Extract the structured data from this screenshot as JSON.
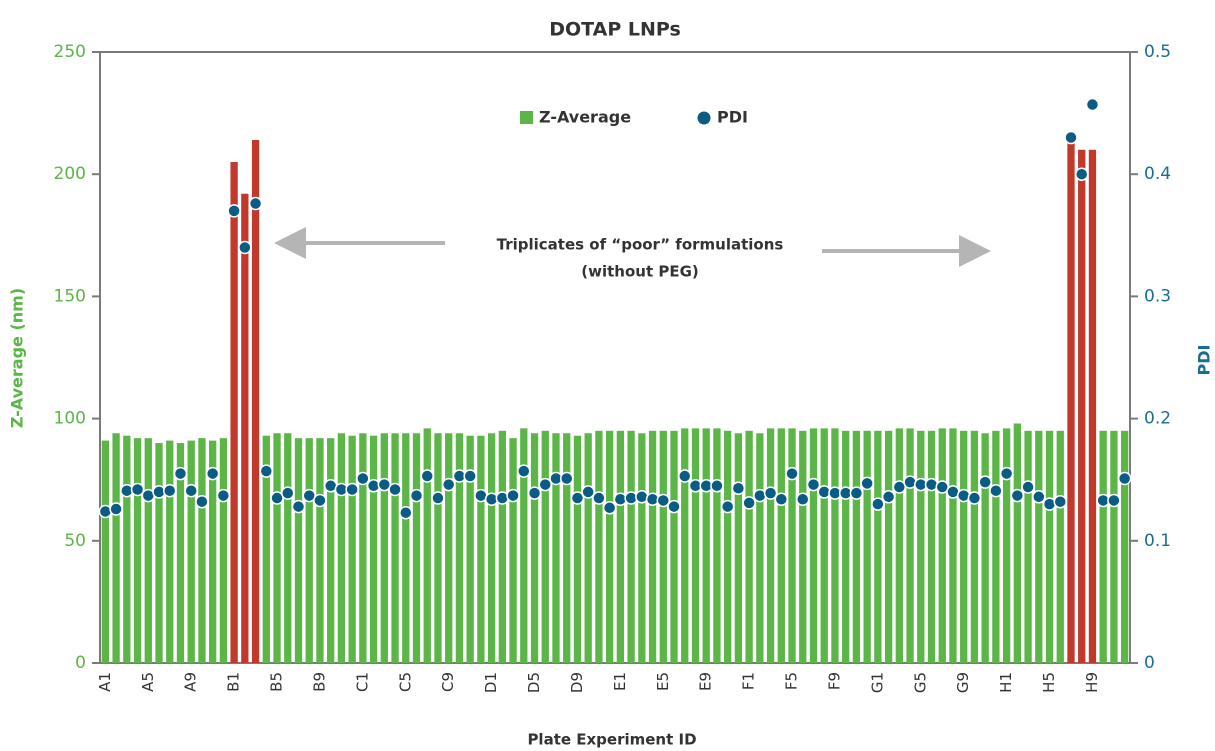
{
  "chart_data": {
    "type": "bar",
    "title": "DOTAP LNPs",
    "x_label": "Plate Experiment ID",
    "y_label": "Z-Average (nm)",
    "y2_label": "PDI",
    "annotation": [
      "Triplicates of “poor” formulations",
      "(without PEG)"
    ],
    "categories": [
      "A1",
      null,
      null,
      null,
      "A5",
      null,
      null,
      null,
      "A9",
      null,
      null,
      null,
      "B1",
      null,
      null,
      null,
      "B5",
      null,
      null,
      null,
      "B9",
      null,
      null,
      null,
      "C1",
      null,
      null,
      null,
      "C5",
      null,
      null,
      null,
      "C9",
      null,
      null,
      null,
      "D1",
      null,
      null,
      null,
      "D5",
      null,
      null,
      null,
      "D9",
      null,
      null,
      null,
      "E1",
      null,
      null,
      null,
      "E5",
      null,
      null,
      null,
      "E9",
      null,
      null,
      null,
      "F1",
      null,
      null,
      null,
      "F5",
      null,
      null,
      null,
      "F9",
      null,
      null,
      null,
      "G1",
      null,
      null,
      null,
      "G5",
      null,
      null,
      null,
      "G9",
      null,
      null,
      null,
      "H1",
      null,
      null,
      null,
      "H5",
      null,
      null,
      null,
      "H9",
      null,
      null,
      null
    ],
    "series": [
      {
        "name": "Z-Average",
        "type": "bar",
        "color": "#5bb547",
        "colors": [
          "#5bb547",
          "#5bb547",
          "#5bb547",
          "#5bb547",
          "#5bb547",
          "#5bb547",
          "#5bb547",
          "#5bb547",
          "#5bb547",
          "#5bb547",
          "#5bb547",
          "#5bb547",
          "#c0392b",
          "#c0392b",
          "#c0392b",
          "#5bb547",
          "#5bb547",
          "#5bb547",
          "#5bb547",
          "#5bb547",
          "#5bb547",
          "#5bb547",
          "#5bb547",
          "#5bb547",
          "#5bb547",
          "#5bb547",
          "#5bb547",
          "#5bb547",
          "#5bb547",
          "#5bb547",
          "#5bb547",
          "#5bb547",
          "#5bb547",
          "#5bb547",
          "#5bb547",
          "#5bb547",
          "#5bb547",
          "#5bb547",
          "#5bb547",
          "#5bb547",
          "#5bb547",
          "#5bb547",
          "#5bb547",
          "#5bb547",
          "#5bb547",
          "#5bb547",
          "#5bb547",
          "#5bb547",
          "#5bb547",
          "#5bb547",
          "#5bb547",
          "#5bb547",
          "#5bb547",
          "#5bb547",
          "#5bb547",
          "#5bb547",
          "#5bb547",
          "#5bb547",
          "#5bb547",
          "#5bb547",
          "#5bb547",
          "#5bb547",
          "#5bb547",
          "#5bb547",
          "#5bb547",
          "#5bb547",
          "#5bb547",
          "#5bb547",
          "#5bb547",
          "#5bb547",
          "#5bb547",
          "#5bb547",
          "#5bb547",
          "#5bb547",
          "#5bb547",
          "#5bb547",
          "#5bb547",
          "#5bb547",
          "#5bb547",
          "#5bb547",
          "#5bb547",
          "#5bb547",
          "#5bb547",
          "#5bb547",
          "#5bb547",
          "#5bb547",
          "#5bb547",
          "#5bb547",
          "#5bb547",
          "#5bb547",
          "#c0392b",
          "#c0392b",
          "#c0392b",
          "#5bb547",
          "#5bb547",
          "#5bb547"
        ],
        "values": [
          91,
          94,
          93,
          92,
          92,
          90,
          91,
          90,
          91,
          92,
          91,
          92,
          205,
          192,
          214,
          93,
          94,
          94,
          92,
          92,
          92,
          92,
          94,
          93,
          94,
          93,
          94,
          94,
          94,
          94,
          96,
          94,
          94,
          94,
          93,
          93,
          94,
          95,
          92,
          96,
          94,
          95,
          94,
          94,
          93,
          94,
          95,
          95,
          95,
          95,
          94,
          95,
          95,
          95,
          96,
          96,
          96,
          96,
          95,
          94,
          95,
          94,
          96,
          96,
          96,
          95,
          96,
          96,
          96,
          95,
          95,
          95,
          95,
          95,
          96,
          96,
          95,
          95,
          96,
          96,
          95,
          95,
          94,
          95,
          96,
          98,
          95,
          95,
          95,
          95,
          215,
          210,
          210,
          95,
          95,
          95
        ]
      },
      {
        "name": "PDI",
        "type": "scatter",
        "axis": "y2",
        "color": "#0b5c84",
        "values": [
          0.124,
          0.126,
          0.141,
          0.142,
          0.137,
          0.14,
          0.141,
          0.155,
          0.141,
          0.132,
          0.155,
          0.137,
          0.37,
          0.34,
          0.376,
          0.157,
          0.135,
          0.139,
          0.128,
          0.137,
          0.133,
          0.145,
          0.142,
          0.142,
          0.151,
          0.145,
          0.146,
          0.142,
          0.123,
          0.137,
          0.153,
          0.135,
          0.146,
          0.153,
          0.153,
          0.137,
          0.134,
          0.135,
          0.137,
          0.157,
          0.139,
          0.146,
          0.151,
          0.151,
          0.135,
          0.14,
          0.135,
          0.127,
          0.134,
          0.135,
          0.136,
          0.134,
          0.133,
          0.128,
          0.153,
          0.145,
          0.145,
          0.145,
          0.128,
          0.143,
          0.131,
          0.137,
          0.139,
          0.134,
          0.155,
          0.134,
          0.146,
          0.14,
          0.139,
          0.139,
          0.139,
          0.147,
          0.13,
          0.136,
          0.144,
          0.148,
          0.146,
          0.146,
          0.144,
          0.14,
          0.137,
          0.135,
          0.148,
          0.141,
          0.155,
          0.137,
          0.144,
          0.136,
          0.13,
          0.132,
          0.43,
          0.4,
          0.457,
          0.133,
          0.133,
          0.151
        ]
      }
    ],
    "ylim": [
      0,
      250
    ],
    "yticks": [
      0,
      50,
      100,
      150,
      200,
      250
    ],
    "y2lim": [
      0,
      0.5
    ],
    "y2ticks": [
      0,
      0.1,
      0.2,
      0.3,
      0.4,
      0.5
    ],
    "y_color": "#5bb547",
    "y2_color": "#1a6e94",
    "grid": false,
    "legend": "top"
  }
}
